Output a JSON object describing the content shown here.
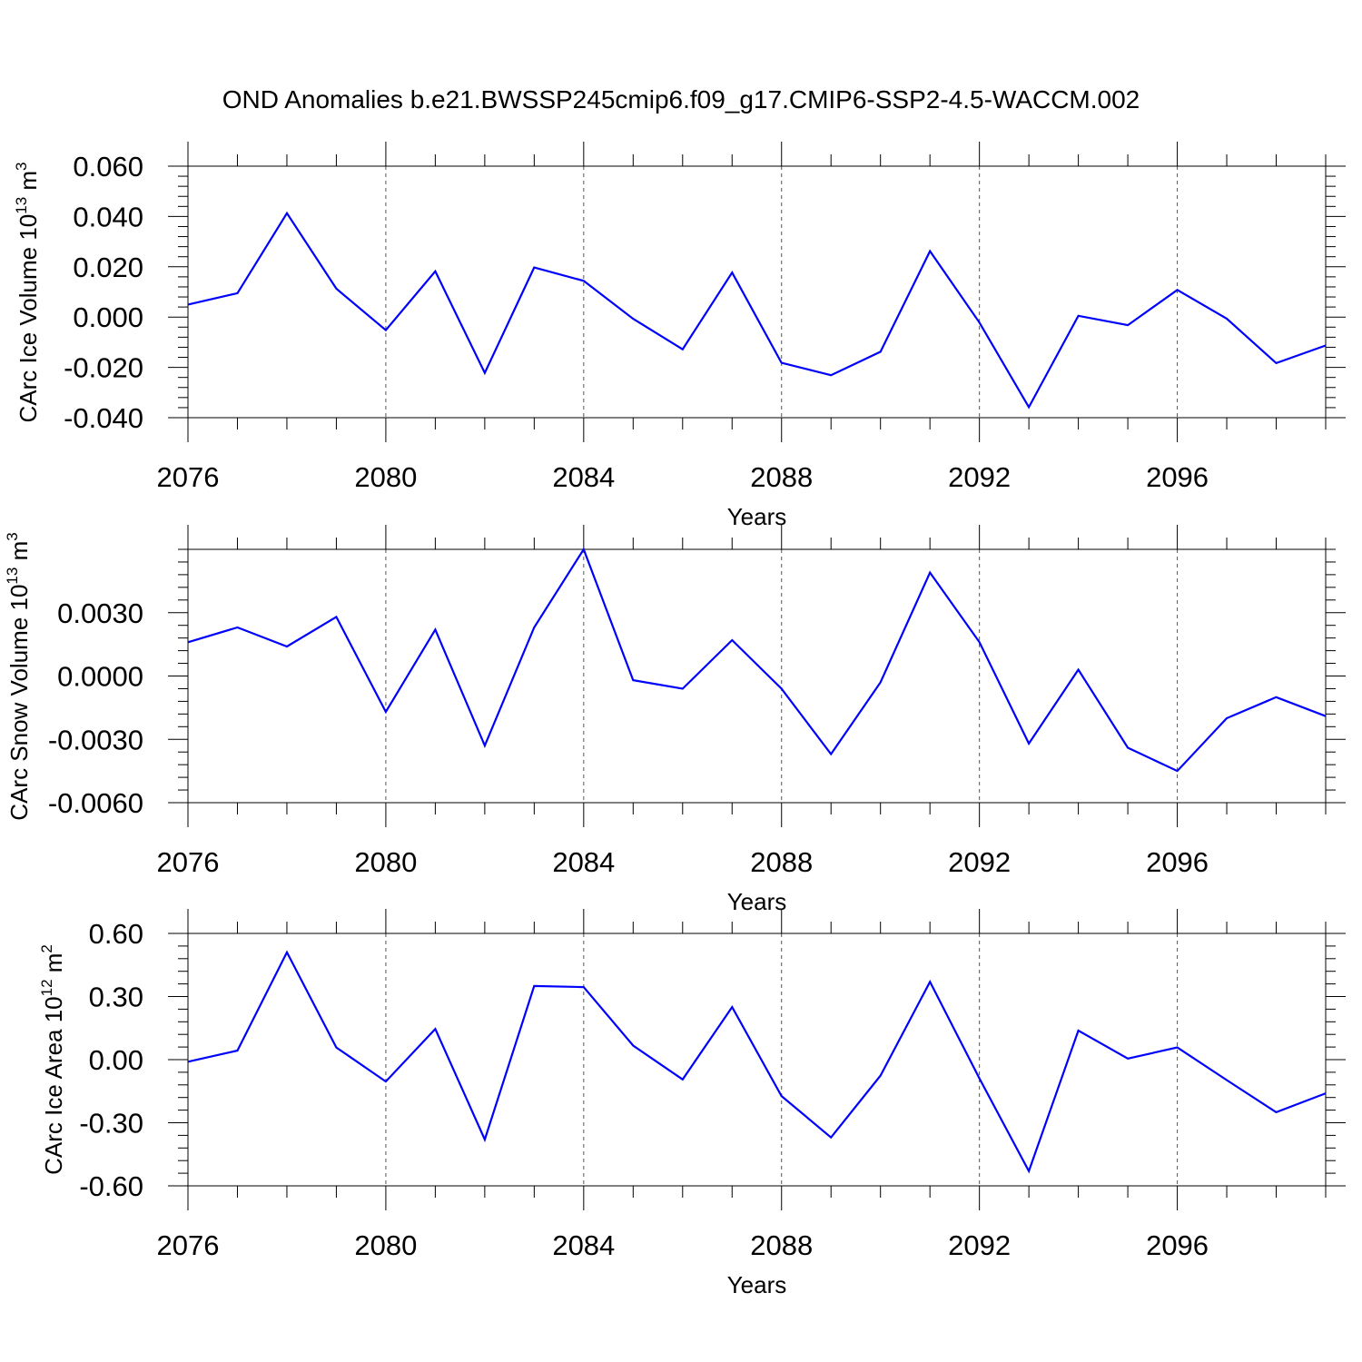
{
  "title": "OND Anomalies b.e21.BWSSP245cmip6.f09_g17.CMIP6-SSP2-4.5-WACCM.002",
  "colors": {
    "line": "#0000ff"
  },
  "chart_data": [
    {
      "type": "line",
      "ylabel": "CArc Ice Volume 10",
      "ylabel_exp": "13",
      "ylabel_unit": " m",
      "ylabel_unit_exp": "3",
      "xlabel": "Years",
      "xlim": [
        2076,
        2099
      ],
      "ylim": [
        -0.04,
        0.06
      ],
      "yticks": [
        0.06,
        0.04,
        0.02,
        0.0,
        -0.02,
        -0.04
      ],
      "ytick_labels": [
        "0.060",
        "0.040",
        "0.020",
        "0.000",
        "-0.020",
        "-0.040"
      ],
      "xticks": [
        2076,
        2080,
        2084,
        2088,
        2092,
        2096
      ],
      "xtick_labels": [
        "2076",
        "2080",
        "2084",
        "2088",
        "2092",
        "2096"
      ],
      "grid": "vertical dashed at labeled years",
      "x": [
        2076,
        2077,
        2078,
        2079,
        2080,
        2081,
        2082,
        2083,
        2084,
        2085,
        2086,
        2087,
        2088,
        2089,
        2090,
        2091,
        2092,
        2093,
        2094,
        2095,
        2096,
        2097,
        2098,
        2099
      ],
      "y": [
        0.005,
        0.0095,
        0.0413,
        0.0113,
        -0.0052,
        0.0182,
        -0.0222,
        0.0197,
        0.0144,
        -0.0007,
        -0.0128,
        0.0177,
        -0.0182,
        -0.0231,
        -0.0138,
        0.0262,
        -0.0022,
        -0.0358,
        0.0005,
        -0.0032,
        0.0108,
        -0.0006,
        -0.0183,
        -0.0113
      ]
    },
    {
      "type": "line",
      "ylabel": "CArc Snow Volume 10",
      "ylabel_exp": "13",
      "ylabel_unit": " m",
      "ylabel_unit_exp": "3",
      "xlabel": "Years",
      "xlim": [
        2076,
        2099
      ],
      "ylim": [
        -0.006,
        0.006
      ],
      "yticks": [
        0.003,
        0.0,
        -0.003,
        -0.006
      ],
      "ytick_labels": [
        "0.0030",
        "0.0000",
        "-0.0030",
        "-0.0060"
      ],
      "xticks": [
        2076,
        2080,
        2084,
        2088,
        2092,
        2096
      ],
      "xtick_labels": [
        "2076",
        "2080",
        "2084",
        "2088",
        "2092",
        "2096"
      ],
      "grid": "vertical dashed at labeled years",
      "x": [
        2076,
        2077,
        2078,
        2079,
        2080,
        2081,
        2082,
        2083,
        2084,
        2085,
        2086,
        2087,
        2088,
        2089,
        2090,
        2091,
        2092,
        2093,
        2094,
        2095,
        2096,
        2097,
        2098,
        2099
      ],
      "y": [
        0.0016,
        0.0023,
        0.0014,
        0.0028,
        -0.0017,
        0.0022,
        -0.0033,
        0.0023,
        0.006,
        -0.0002,
        -0.0006,
        0.0017,
        -0.0006,
        -0.0037,
        -0.0003,
        0.0049,
        0.0016,
        -0.0032,
        0.0003,
        -0.0034,
        -0.0045,
        -0.002,
        -0.001,
        -0.0019
      ]
    },
    {
      "type": "line",
      "ylabel": "CArc Ice Area 10",
      "ylabel_exp": "12",
      "ylabel_unit": " m",
      "ylabel_unit_exp": "2",
      "xlabel": "Years",
      "xlim": [
        2076,
        2099
      ],
      "ylim": [
        -0.6,
        0.6
      ],
      "yticks": [
        0.6,
        0.3,
        0.0,
        -0.3,
        -0.6
      ],
      "ytick_labels": [
        "0.60",
        "0.30",
        "0.00",
        "-0.30",
        "-0.60"
      ],
      "xticks": [
        2076,
        2080,
        2084,
        2088,
        2092,
        2096
      ],
      "xtick_labels": [
        "2076",
        "2080",
        "2084",
        "2088",
        "2092",
        "2096"
      ],
      "grid": "vertical dashed at labeled years",
      "x": [
        2076,
        2077,
        2078,
        2079,
        2080,
        2081,
        2082,
        2083,
        2084,
        2085,
        2086,
        2087,
        2088,
        2089,
        2090,
        2091,
        2092,
        2093,
        2094,
        2095,
        2096,
        2097,
        2098,
        2099
      ],
      "y": [
        -0.01,
        0.043,
        0.51,
        0.058,
        -0.104,
        0.146,
        -0.38,
        0.35,
        0.345,
        0.067,
        -0.094,
        0.25,
        -0.173,
        -0.37,
        -0.076,
        0.37,
        -0.09,
        -0.53,
        0.138,
        0.005,
        0.058,
        -0.097,
        -0.25,
        -0.16
      ]
    }
  ]
}
